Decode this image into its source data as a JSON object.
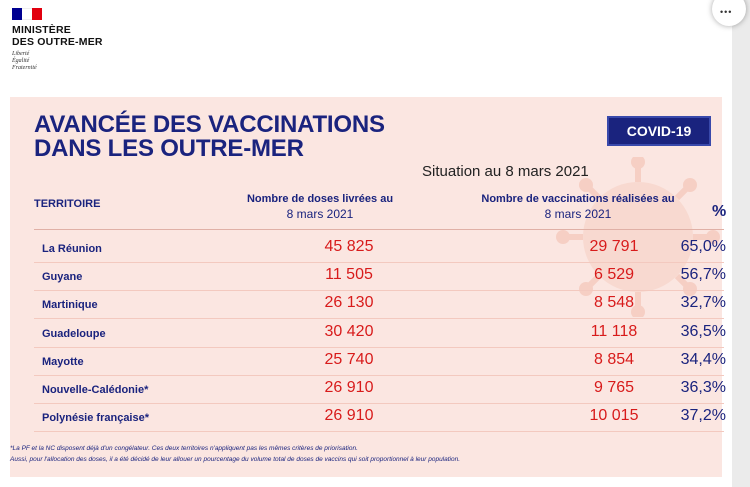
{
  "header": {
    "ministry_line1": "MINISTÈRE",
    "ministry_line2": "DES OUTRE-MER",
    "motto": [
      "Liberté",
      "Égalité",
      "Fraternité"
    ]
  },
  "title_line1": "AVANCÉE DES VACCINATIONS",
  "title_line2": "DANS LES OUTRE-MER",
  "badge": "COVID-19",
  "situation": "Situation au 8 mars 2021",
  "columns": {
    "territory": "TERRITOIRE",
    "doses_line1": "Nombre de doses livrées au",
    "doses_line2": "8 mars 2021",
    "vacc_line1": "Nombre de vaccinations réalisées au",
    "vacc_line2": "8 mars 2021",
    "pct": "%"
  },
  "rows": [
    {
      "name": "La Réunion",
      "doses": "45 825",
      "vaccinations": "29 791",
      "pct": "65,0%"
    },
    {
      "name": "Guyane",
      "doses": "11 505",
      "vaccinations": "6 529",
      "pct": "56,7%"
    },
    {
      "name": "Martinique",
      "doses": "26 130",
      "vaccinations": "8 548",
      "pct": "32,7%"
    },
    {
      "name": "Guadeloupe",
      "doses": "30 420",
      "vaccinations": "11 118",
      "pct": "36,5%"
    },
    {
      "name": "Mayotte",
      "doses": "25 740",
      "vaccinations": "8 854",
      "pct": "34,4%"
    },
    {
      "name": "Nouvelle-Calédonie*",
      "doses": "26 910",
      "vaccinations": "9 765",
      "pct": "36,3%"
    },
    {
      "name": "Polynésie française*",
      "doses": "26 910",
      "vaccinations": "10 015",
      "pct": "37,2%"
    }
  ],
  "footnote_line1": "*La PF et la NC disposent déjà d'un congélateur. Ces deux territoires n'appliquent pas les mêmes critères de priorisation.",
  "footnote_line2": "Aussi, pour l'allocation des doses, il a été décidé de leur allouer un pourcentage du volume total de doses de vaccins qui soit proportionnel à leur population.",
  "colors": {
    "navy": "#1a237e",
    "red": "#d81b1b",
    "panel": "#fbe6e1"
  },
  "icons": {
    "corner": "more-dots-icon",
    "decor": "virus-icon"
  }
}
